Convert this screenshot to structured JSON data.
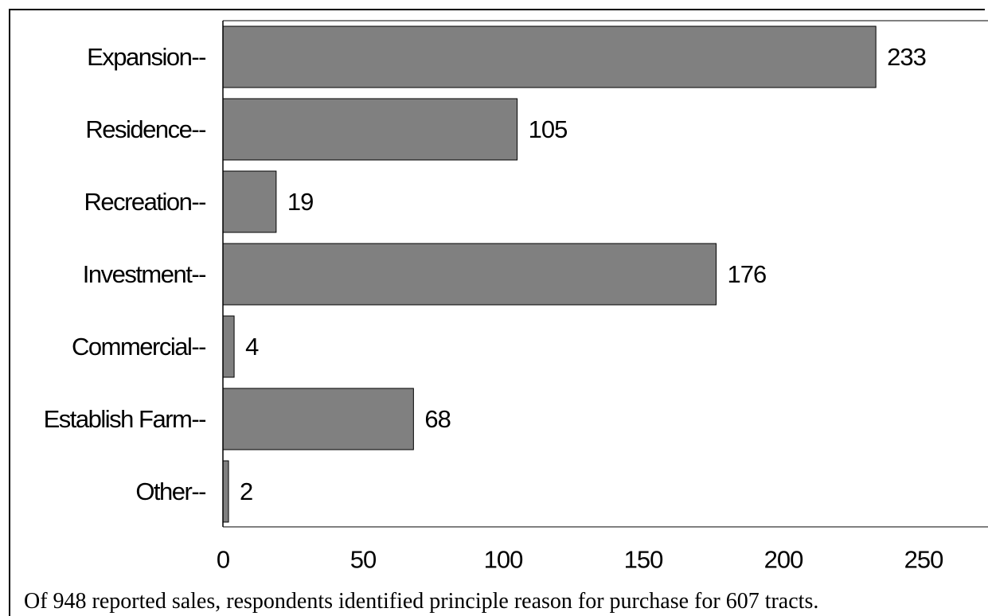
{
  "chart_data": {
    "type": "bar",
    "orientation": "horizontal",
    "categories": [
      "Expansion--",
      "Residence--",
      "Recreation--",
      "Investment--",
      "Commercial--",
      "Establish Farm--",
      "Other--"
    ],
    "values": [
      233,
      105,
      19,
      176,
      4,
      68,
      2
    ],
    "xticks": [
      0,
      50,
      100,
      150,
      200,
      250
    ],
    "xlim": [
      0,
      273
    ],
    "bar_color": "#808080",
    "grid": false,
    "caption": "Of 948 reported sales, respondents identified principle reason for purchase for 607 tracts."
  }
}
